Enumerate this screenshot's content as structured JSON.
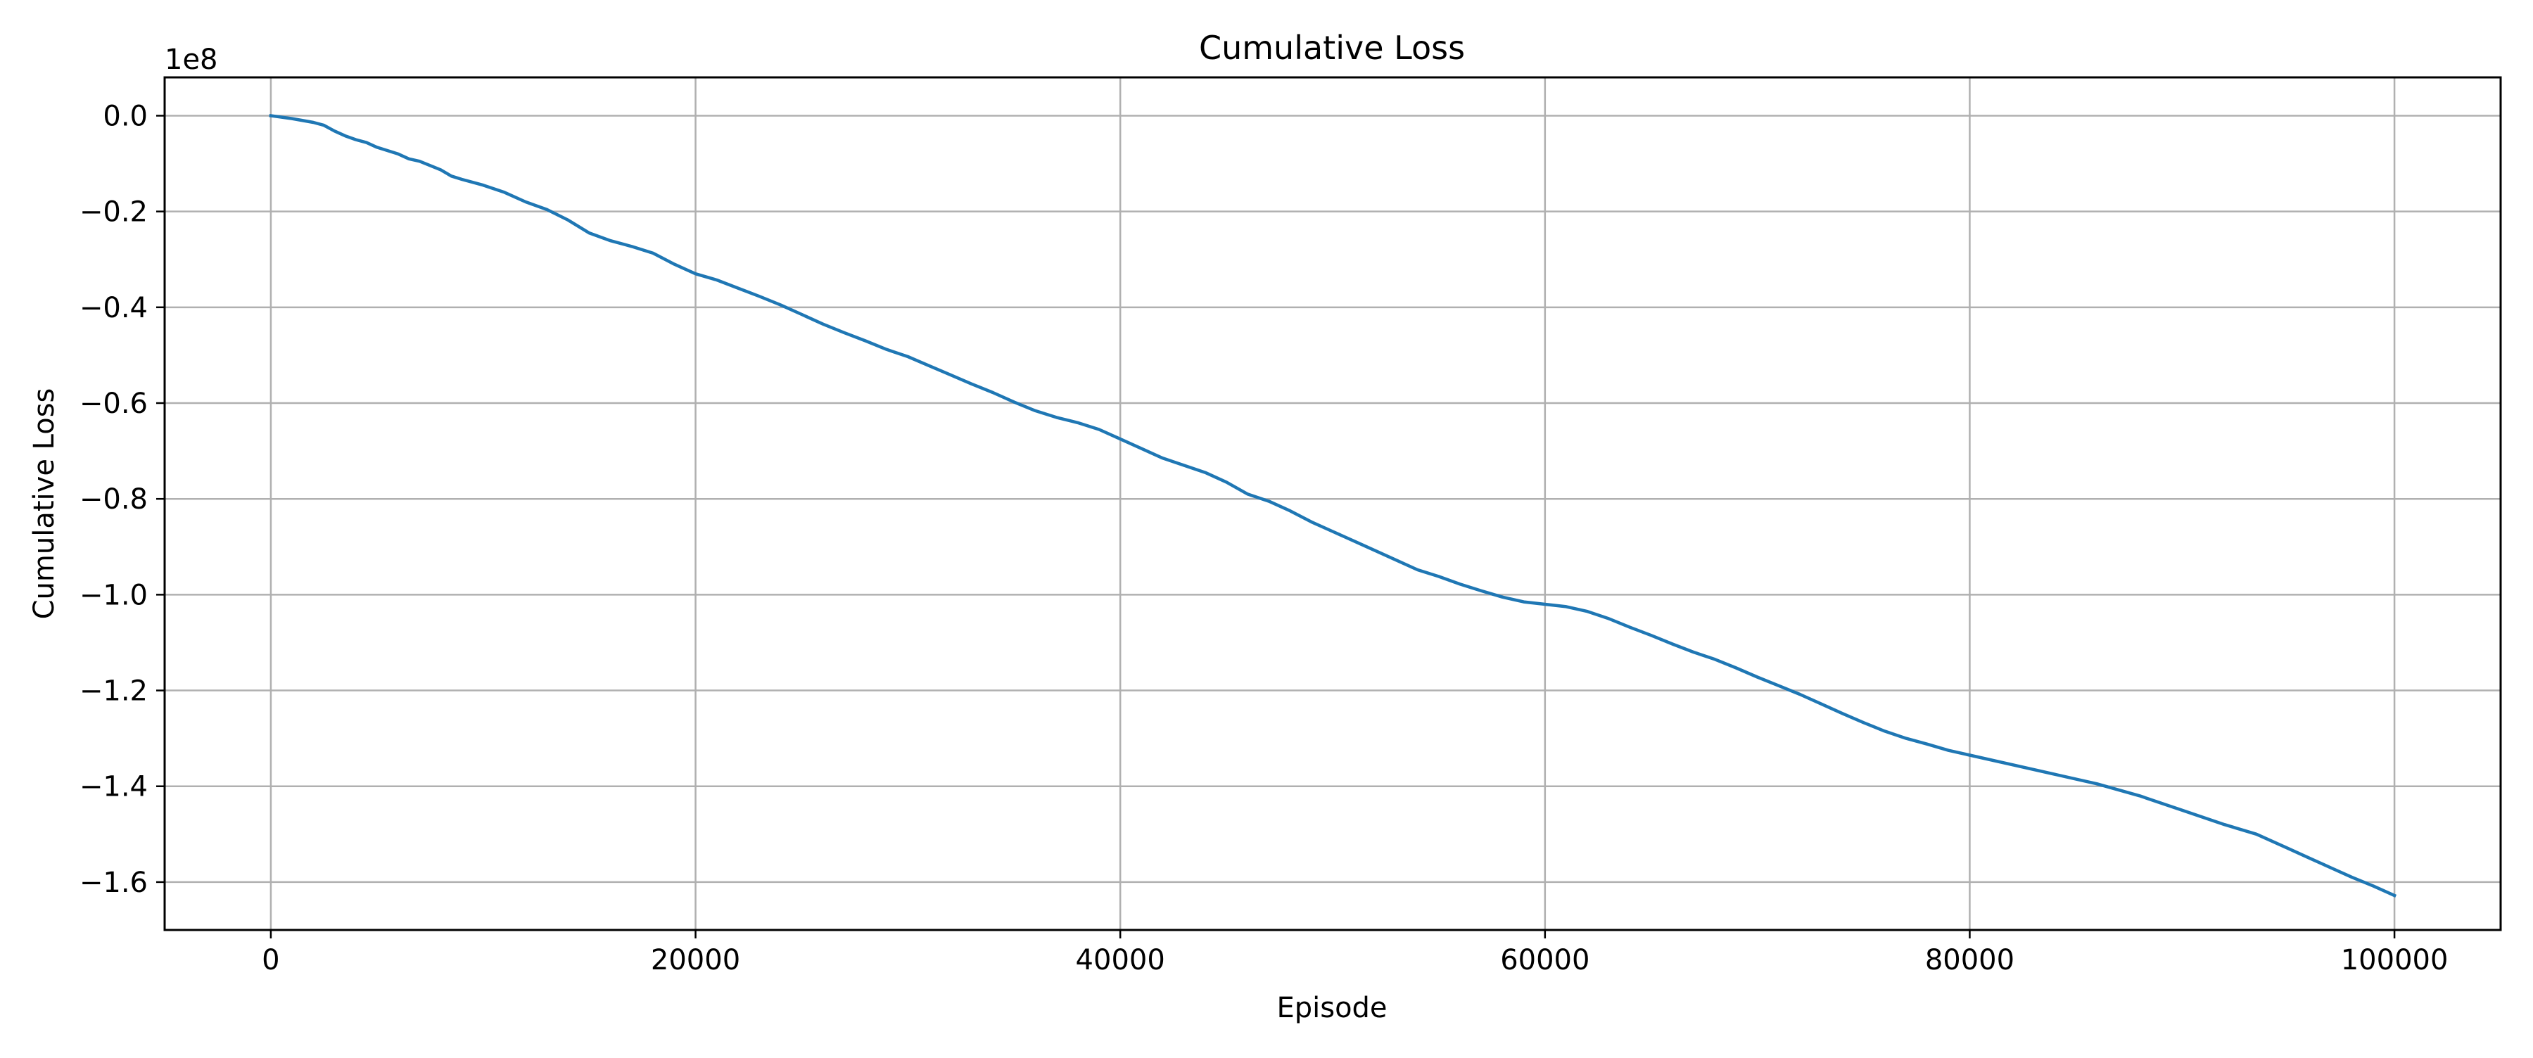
{
  "chart_data": {
    "type": "line",
    "title": "Cumulative Loss",
    "xlabel": "Episode",
    "ylabel": "Cumulative Loss",
    "y_offset_label": "1e8",
    "xlim": [
      -5000,
      105000
    ],
    "ylim": [
      -1.7,
      0.08
    ],
    "y_multiplier": 100000000,
    "xticks": [
      0,
      20000,
      40000,
      60000,
      80000,
      100000
    ],
    "xtick_labels": [
      "0",
      "20000",
      "40000",
      "60000",
      "80000",
      "100000"
    ],
    "yticks": [
      0.0,
      -0.2,
      -0.4,
      -0.6,
      -0.8,
      -1.0,
      -1.2,
      -1.4,
      -1.6
    ],
    "ytick_labels": [
      "0.0",
      "−0.2",
      "−0.4",
      "−0.6",
      "−0.8",
      "−1.0",
      "−1.2",
      "−1.4",
      "−1.6"
    ],
    "grid": true,
    "colors": {
      "line": "#1f77b4",
      "grid": "#b0b0b0",
      "axes": "#000000"
    },
    "series": [
      {
        "x": [
          0,
          1000,
          2000,
          2500,
          3000,
          3500,
          4000,
          4500,
          5000,
          6000,
          6500,
          7000,
          8000,
          8500,
          9000,
          10000,
          11000,
          12000,
          13000,
          14000,
          15000,
          16000,
          17000,
          18000,
          19000,
          20000,
          21000,
          22000,
          23000,
          24000,
          25000,
          26000,
          27000,
          28000,
          29000,
          30000,
          31000,
          32000,
          33000,
          34000,
          35000,
          36000,
          37000,
          38000,
          39000,
          40000,
          41000,
          42000,
          43000,
          44000,
          45000,
          46000,
          47000,
          48000,
          49000,
          50000,
          51000,
          52000,
          53000,
          54000,
          55000,
          56000,
          57000,
          58000,
          59000,
          60000,
          61000,
          62000,
          63000,
          64000,
          65000,
          66000,
          67000,
          68000,
          69000,
          70000,
          71000,
          72000,
          73000,
          74000,
          75000,
          76000,
          77000,
          78000,
          79000,
          80000,
          82000,
          84000,
          86000,
          88000,
          90000,
          92000,
          93500,
          95000,
          96000,
          97000,
          98000,
          99000,
          100000
        ],
        "y": [
          0.0,
          -0.006,
          -0.014,
          -0.02,
          -0.032,
          -0.042,
          -0.05,
          -0.056,
          -0.066,
          -0.08,
          -0.09,
          -0.095,
          -0.113,
          -0.126,
          -0.133,
          -0.145,
          -0.16,
          -0.18,
          -0.196,
          -0.218,
          -0.245,
          -0.261,
          -0.273,
          -0.287,
          -0.31,
          -0.33,
          -0.343,
          -0.36,
          -0.377,
          -0.395,
          -0.415,
          -0.435,
          -0.453,
          -0.47,
          -0.488,
          -0.503,
          -0.522,
          -0.541,
          -0.56,
          -0.578,
          -0.598,
          -0.616,
          -0.63,
          -0.641,
          -0.655,
          -0.675,
          -0.695,
          -0.715,
          -0.73,
          -0.745,
          -0.765,
          -0.79,
          -0.805,
          -0.825,
          -0.848,
          -0.868,
          -0.888,
          -0.908,
          -0.928,
          -0.948,
          -0.962,
          -0.978,
          -0.992,
          -1.005,
          -1.015,
          -1.02,
          -1.025,
          -1.035,
          -1.05,
          -1.068,
          -1.085,
          -1.103,
          -1.12,
          -1.135,
          -1.153,
          -1.172,
          -1.19,
          -1.208,
          -1.228,
          -1.248,
          -1.267,
          -1.285,
          -1.3,
          -1.312,
          -1.325,
          -1.335,
          -1.355,
          -1.375,
          -1.395,
          -1.42,
          -1.45,
          -1.48,
          -1.5,
          -1.53,
          -1.55,
          -1.57,
          -1.59,
          -1.608,
          -1.628
        ]
      }
    ]
  }
}
